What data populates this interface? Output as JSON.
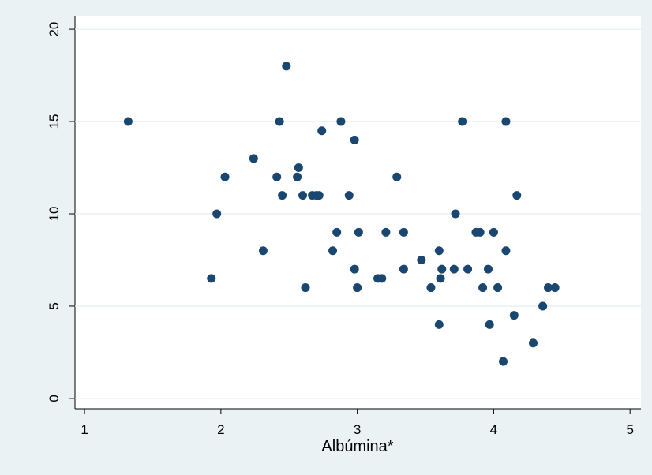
{
  "chart_data": {
    "type": "scatter",
    "x_label": "Albúmina*",
    "color": "#1a476f",
    "grid": true,
    "xlim": [
      0.93,
      5.08
    ],
    "ylim": [
      -0.56,
      20.73
    ],
    "xticks": [
      1,
      2,
      3,
      4,
      5
    ],
    "yticks": [
      0,
      5,
      10,
      15,
      20
    ],
    "x": [
      1.32,
      1.93,
      1.97,
      2.03,
      2.24,
      2.31,
      2.41,
      2.43,
      2.45,
      2.48,
      2.56,
      2.57,
      2.6,
      2.62,
      2.67,
      2.7,
      2.72,
      2.74,
      2.82,
      2.85,
      2.88,
      2.94,
      2.98,
      2.98,
      3.0,
      3.01,
      3.15,
      3.18,
      3.21,
      3.29,
      3.34,
      3.34,
      3.47,
      3.54,
      3.6,
      3.6,
      3.61,
      3.62,
      3.72,
      3.71,
      3.77,
      3.81,
      3.87,
      3.9,
      3.92,
      3.96,
      3.97,
      4.0,
      4.03,
      4.09,
      4.09,
      4.07,
      4.15,
      4.17,
      4.29,
      4.36,
      4.4,
      4.45
    ],
    "values": [
      15,
      6.5,
      10,
      12,
      13,
      8,
      12,
      15,
      11,
      18,
      12,
      12.5,
      11,
      6,
      11,
      11,
      11,
      14.5,
      8,
      9,
      15,
      11,
      14,
      7,
      6,
      9,
      6.5,
      6.5,
      9,
      12,
      9,
      7,
      7.5,
      6,
      8,
      4,
      6.5,
      7,
      10,
      7,
      15,
      7,
      9,
      9,
      6,
      7,
      4,
      9,
      6,
      8,
      15,
      2,
      4.5,
      11,
      3,
      5,
      6,
      6
    ]
  }
}
